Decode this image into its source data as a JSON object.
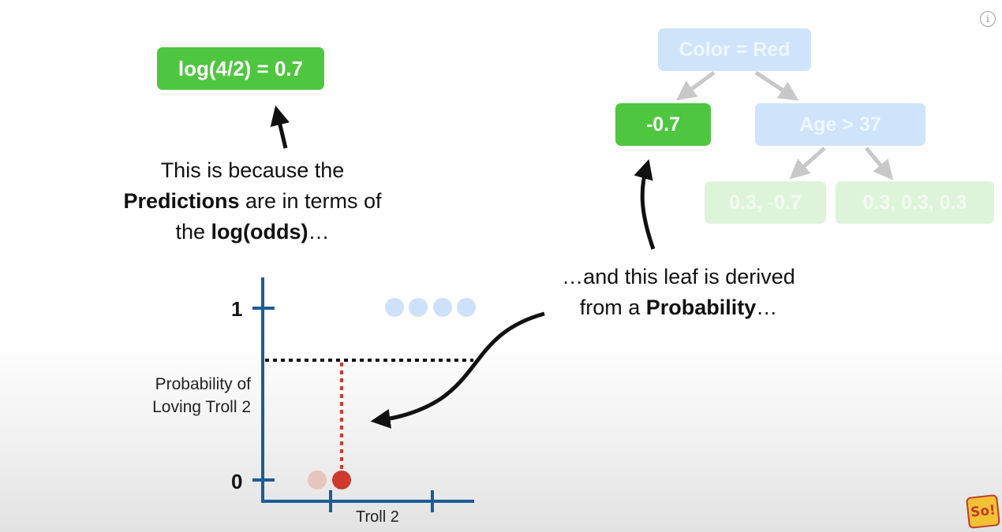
{
  "top_formula": "log(4/2) = 0.7",
  "caption_left": {
    "line1": "This is because the",
    "line2_bold": "Predictions",
    "line2_rest": " are in terms of",
    "line3_pre": "the ",
    "line3_bold": "log(odds)",
    "line3_post": "…"
  },
  "caption_right": {
    "line1": "…and this leaf is derived",
    "line2_pre": "from a ",
    "line2_bold": "Probability",
    "line2_post": "…"
  },
  "tree": {
    "root": "Color = Red",
    "left_leaf": "-0.7",
    "right_node": "Age > 37",
    "leaf_a": "0.3, -0.7",
    "leaf_b": "0.3, 0.3, 0.3"
  },
  "chart_data": {
    "type": "scatter",
    "title": "",
    "ylabel_line1": "Probability of",
    "ylabel_line2": "Loving Troll 2",
    "xlabel": "Troll 2",
    "y_ticks": [
      "1",
      "0"
    ],
    "ylim": [
      0,
      1
    ],
    "reference_line_y": 0.67,
    "points_y1": {
      "count": 4,
      "y": 1,
      "color": "#cde2f8"
    },
    "points_y0": [
      {
        "y": 0,
        "color": "#e8c4c0"
      },
      {
        "y": 0,
        "color": "#cf3a2f",
        "highlighted": true
      }
    ]
  },
  "colors": {
    "axis": "#1b5c9a",
    "green": "#4ec63f",
    "red_dot": "#cf3a2f"
  },
  "icons": [
    "info-icon",
    "channel-logo-icon"
  ],
  "logo_text": "So!"
}
